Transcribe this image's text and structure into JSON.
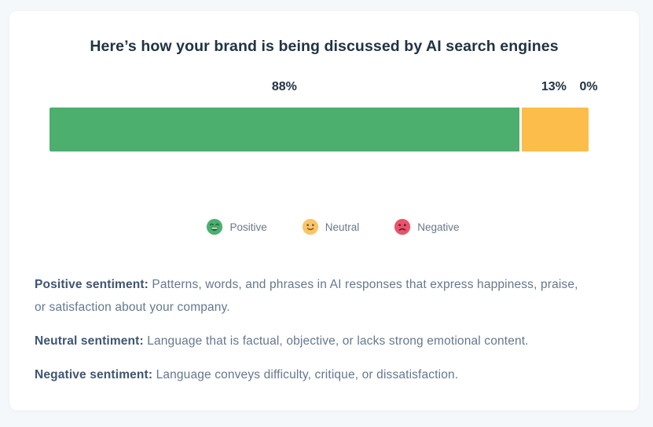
{
  "card": {
    "title": "Here’s how your brand is being discussed by AI search engines"
  },
  "chart_data": {
    "type": "bar",
    "variant": "stacked-horizontal-single",
    "categories": [
      "Positive",
      "Neutral",
      "Negative"
    ],
    "values": [
      88,
      13,
      0
    ],
    "value_labels": [
      "88%",
      "13%",
      "0%"
    ],
    "colors": [
      "#4daf6e",
      "#fdbd4a",
      "#ea5368"
    ],
    "title": "Here’s how your brand is being discussed by AI search engines",
    "xlabel": "",
    "ylabel": "",
    "legend_position": "bottom",
    "grid": false
  },
  "legend": {
    "items": [
      {
        "label": "Positive",
        "icon": "happy-face-icon",
        "color": "#4daf6e"
      },
      {
        "label": "Neutral",
        "icon": "neutral-face-icon",
        "color": "#fdbd4a"
      },
      {
        "label": "Negative",
        "icon": "sad-face-icon",
        "color": "#ea5368"
      }
    ]
  },
  "definitions": [
    {
      "label": "Positive sentiment:",
      "text": " Patterns, words, and phrases in AI responses that express happiness, praise, or satisfaction about your company."
    },
    {
      "label": "Neutral sentiment:",
      "text": " Language that is factual, objective, or lacks strong emotional content."
    },
    {
      "label": "Negative sentiment:",
      "text": " Language conveys difficulty, critique, or dissatisfaction."
    }
  ]
}
